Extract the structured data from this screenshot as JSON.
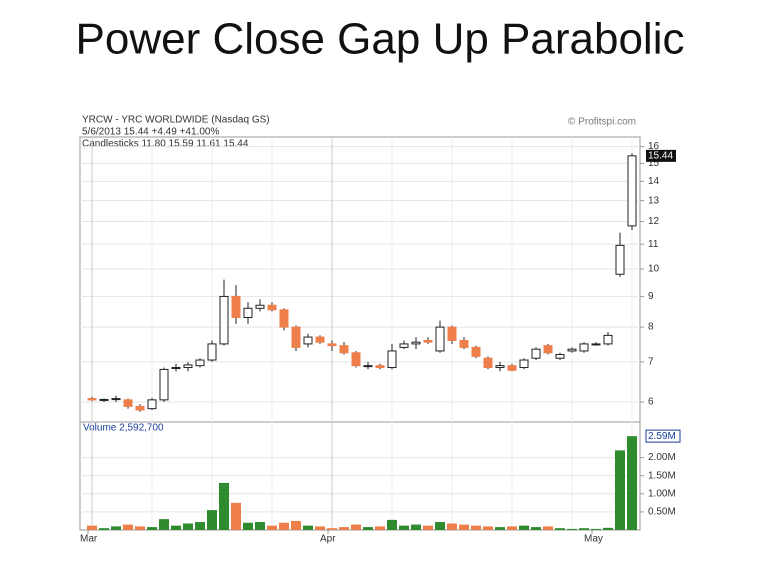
{
  "chart_data": {
    "type": "candlestick",
    "title": "Power Close Gap Up Parabolic",
    "header": [
      "YRCW - YRC WORLDWIDE (Nasdaq GS)",
      "5/6/2013 15.44 +4.49 +41.00%",
      "Candlesticks 11.80 15.59 11.61 15.44"
    ],
    "credit": "© Profitspi.com",
    "categories": [
      "Mar",
      null,
      null,
      null,
      null,
      null,
      null,
      null,
      null,
      null,
      null,
      null,
      null,
      null,
      null,
      null,
      null,
      null,
      null,
      null,
      "Apr",
      null,
      null,
      null,
      null,
      null,
      null,
      null,
      null,
      null,
      null,
      null,
      null,
      null,
      null,
      null,
      null,
      null,
      null,
      null,
      null,
      null,
      "May",
      null,
      null,
      null
    ],
    "open": [
      6.08,
      6.05,
      6.06,
      6.05,
      5.9,
      5.85,
      6.05,
      6.85,
      6.85,
      6.9,
      7.05,
      7.5,
      9.0,
      8.3,
      8.6,
      8.7,
      8.55,
      8.0,
      7.5,
      7.7,
      7.5,
      7.45,
      7.25,
      6.9,
      6.9,
      6.85,
      7.4,
      7.5,
      7.6,
      7.3,
      8.0,
      7.6,
      7.4,
      7.1,
      6.85,
      6.9,
      6.85,
      7.1,
      7.45,
      7.1,
      7.3,
      7.3,
      7.5,
      7.5,
      9.8,
      11.8
    ],
    "high": [
      6.12,
      6.08,
      6.15,
      6.08,
      5.95,
      6.1,
      6.85,
      6.95,
      7.0,
      7.1,
      7.6,
      9.6,
      9.4,
      8.8,
      8.9,
      8.8,
      8.6,
      8.05,
      7.8,
      7.75,
      7.6,
      7.55,
      7.3,
      7.0,
      6.95,
      7.5,
      7.6,
      7.7,
      7.7,
      8.2,
      8.05,
      7.7,
      7.45,
      7.15,
      7.0,
      6.95,
      7.1,
      7.4,
      7.5,
      7.25,
      7.4,
      7.55,
      7.55,
      7.85,
      11.5,
      15.59
    ],
    "low": [
      6.02,
      6.0,
      6.0,
      5.85,
      5.78,
      5.82,
      6.0,
      6.75,
      6.75,
      6.85,
      7.0,
      7.45,
      8.1,
      8.1,
      8.5,
      8.5,
      7.9,
      7.3,
      7.4,
      7.5,
      7.3,
      7.2,
      6.85,
      6.8,
      6.8,
      6.8,
      7.35,
      7.35,
      7.5,
      7.25,
      7.5,
      7.35,
      7.1,
      6.8,
      6.75,
      6.75,
      6.8,
      7.05,
      7.2,
      7.05,
      7.25,
      7.25,
      7.45,
      7.45,
      9.7,
      11.61
    ],
    "close": [
      6.05,
      6.06,
      6.08,
      5.9,
      5.82,
      6.05,
      6.8,
      6.85,
      6.92,
      7.05,
      7.5,
      9.0,
      8.3,
      8.6,
      8.7,
      8.55,
      8.0,
      7.4,
      7.7,
      7.55,
      7.45,
      7.25,
      6.9,
      6.9,
      6.85,
      7.3,
      7.5,
      7.55,
      7.55,
      8.0,
      7.6,
      7.4,
      7.15,
      6.85,
      6.9,
      6.78,
      7.05,
      7.35,
      7.25,
      7.2,
      7.35,
      7.5,
      7.5,
      7.75,
      10.95,
      15.44
    ],
    "up_color": "#ffffff",
    "down_color": "#ef7f4a",
    "log_scale": true,
    "grid": true,
    "ylim": [
      5.6,
      16.6
    ],
    "yticks": [
      6,
      7,
      8,
      9,
      10,
      11,
      12,
      13,
      14,
      15,
      16
    ],
    "volume": {
      "title": "Volume 2,592,700",
      "values": [
        120000,
        50000,
        100000,
        150000,
        100000,
        80000,
        300000,
        120000,
        180000,
        220000,
        550000,
        1300000,
        750000,
        200000,
        220000,
        120000,
        200000,
        250000,
        120000,
        100000,
        50000,
        80000,
        150000,
        80000,
        100000,
        280000,
        120000,
        150000,
        120000,
        220000,
        180000,
        150000,
        120000,
        100000,
        80000,
        100000,
        120000,
        80000,
        100000,
        50000,
        30000,
        50000,
        30000,
        60000,
        2200000,
        2592700
      ],
      "up_color": "#2e8b2e",
      "down_color": "#ef7f4a",
      "ylim": [
        0,
        2900000
      ],
      "yticks": [
        {
          "value": 500000,
          "label": "0.50M"
        },
        {
          "value": 1000000,
          "label": "1.00M"
        },
        {
          "value": 1500000,
          "label": "1.50M"
        },
        {
          "value": 2000000,
          "label": "2.00M"
        }
      ],
      "last_label": "2.59M"
    }
  }
}
